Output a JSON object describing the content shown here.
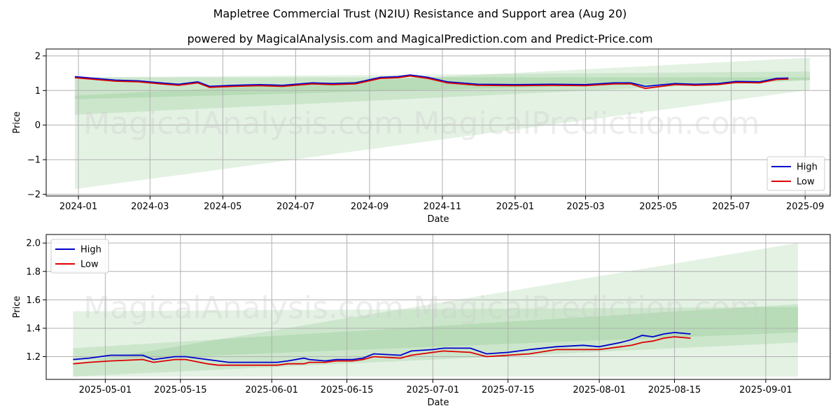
{
  "title": "Mapletree Commercial Trust (N2IU) Resistance and Support area (Aug 20)",
  "subtitle": "powered by MagicalAnalysis.com and MagicalPrediction.com and Predict-Price.com",
  "watermarks": [
    "MagicalAnalysis.com",
    "MagicalPrediction.com"
  ],
  "colors": {
    "high": "#0000cc",
    "low": "#dd0000",
    "band": "#2e9a2e",
    "grid": "#b0b0b0"
  },
  "chart_data": [
    {
      "type": "line",
      "xlabel": "Date",
      "ylabel": "Price",
      "ylim": [
        -2.05,
        2.2
      ],
      "xlim": [
        "2023-12-05",
        "2025-09-22"
      ],
      "grid": true,
      "legend_position": "bottom-right",
      "x_ticks": [
        "2024-01",
        "2024-03",
        "2024-05",
        "2024-07",
        "2024-09",
        "2024-11",
        "2025-01",
        "2025-03",
        "2025-05",
        "2025-07",
        "2025-09"
      ],
      "x_tick_dates": [
        "2024-01-01",
        "2024-03-01",
        "2024-05-01",
        "2024-07-01",
        "2024-09-01",
        "2024-11-01",
        "2025-01-01",
        "2025-03-01",
        "2025-05-01",
        "2025-07-01",
        "2025-09-01"
      ],
      "y_ticks": [
        -2,
        -1,
        0,
        1,
        2
      ],
      "y_tick_labels": [
        "−2",
        "−1",
        "0",
        "1",
        "2"
      ],
      "series": [
        {
          "name": "High",
          "x": [
            "2023-12-29",
            "2024-01-15",
            "2024-02-01",
            "2024-02-20",
            "2024-03-10",
            "2024-03-25",
            "2024-04-10",
            "2024-04-20",
            "2024-05-10",
            "2024-06-01",
            "2024-06-20",
            "2024-07-15",
            "2024-08-01",
            "2024-08-20",
            "2024-09-10",
            "2024-09-25",
            "2024-10-05",
            "2024-10-20",
            "2024-11-05",
            "2024-12-01",
            "2025-01-01",
            "2025-02-01",
            "2025-03-01",
            "2025-03-25",
            "2025-04-08",
            "2025-04-20",
            "2025-05-15",
            "2025-06-01",
            "2025-06-20",
            "2025-07-05",
            "2025-07-25",
            "2025-08-08",
            "2025-08-18"
          ],
          "values": [
            1.4,
            1.35,
            1.3,
            1.28,
            1.22,
            1.18,
            1.25,
            1.12,
            1.15,
            1.17,
            1.15,
            1.22,
            1.2,
            1.22,
            1.38,
            1.4,
            1.45,
            1.38,
            1.25,
            1.18,
            1.17,
            1.18,
            1.17,
            1.22,
            1.22,
            1.12,
            1.2,
            1.18,
            1.2,
            1.26,
            1.25,
            1.35,
            1.36
          ]
        },
        {
          "name": "Low",
          "x": [
            "2023-12-29",
            "2024-01-15",
            "2024-02-01",
            "2024-02-20",
            "2024-03-10",
            "2024-03-25",
            "2024-04-10",
            "2024-04-20",
            "2024-05-10",
            "2024-06-01",
            "2024-06-20",
            "2024-07-15",
            "2024-08-01",
            "2024-08-20",
            "2024-09-10",
            "2024-09-25",
            "2024-10-05",
            "2024-10-20",
            "2024-11-05",
            "2024-12-01",
            "2025-01-01",
            "2025-02-01",
            "2025-03-01",
            "2025-03-25",
            "2025-04-08",
            "2025-04-20",
            "2025-05-15",
            "2025-06-01",
            "2025-06-20",
            "2025-07-05",
            "2025-07-25",
            "2025-08-08",
            "2025-08-18"
          ],
          "values": [
            1.37,
            1.32,
            1.27,
            1.25,
            1.19,
            1.15,
            1.22,
            1.09,
            1.12,
            1.14,
            1.12,
            1.19,
            1.17,
            1.19,
            1.35,
            1.37,
            1.42,
            1.35,
            1.22,
            1.15,
            1.14,
            1.15,
            1.14,
            1.19,
            1.19,
            1.06,
            1.17,
            1.15,
            1.17,
            1.23,
            1.22,
            1.32,
            1.33
          ]
        }
      ],
      "bands": [
        {
          "x": [
            "2023-12-29",
            "2025-09-05"
          ],
          "upper": [
            1.38,
            1.38
          ],
          "lower": [
            -1.85,
            1.02
          ]
        },
        {
          "x": [
            "2023-12-29",
            "2025-09-05"
          ],
          "upper": [
            0.85,
            1.95
          ],
          "lower": [
            0.3,
            1.3
          ]
        },
        {
          "x": [
            "2023-12-29",
            "2025-09-05"
          ],
          "upper": [
            1.38,
            1.55
          ],
          "lower": [
            0.75,
            1.3
          ]
        }
      ]
    },
    {
      "type": "line",
      "xlabel": "Date",
      "ylabel": "Price",
      "ylim": [
        1.04,
        2.06
      ],
      "xlim": [
        "2025-04-20",
        "2025-09-13"
      ],
      "grid": true,
      "legend_position": "top-left",
      "x_ticks": [
        "2025-05-01",
        "2025-05-15",
        "2025-06-01",
        "2025-06-15",
        "2025-07-01",
        "2025-07-15",
        "2025-08-01",
        "2025-08-15",
        "2025-09-01"
      ],
      "y_ticks": [
        1.2,
        1.4,
        1.6,
        1.8,
        2.0
      ],
      "y_tick_labels": [
        "1.2",
        "1.4",
        "1.6",
        "1.8",
        "2.0"
      ],
      "series": [
        {
          "name": "High",
          "x": [
            "2025-04-25",
            "2025-04-28",
            "2025-05-02",
            "2025-05-08",
            "2025-05-10",
            "2025-05-14",
            "2025-05-16",
            "2025-05-20",
            "2025-05-22",
            "2025-05-24",
            "2025-06-02",
            "2025-06-04",
            "2025-06-07",
            "2025-06-08",
            "2025-06-11",
            "2025-06-13",
            "2025-06-16",
            "2025-06-18",
            "2025-06-20",
            "2025-06-25",
            "2025-06-27",
            "2025-07-01",
            "2025-07-03",
            "2025-07-08",
            "2025-07-11",
            "2025-07-15",
            "2025-07-19",
            "2025-07-24",
            "2025-07-29",
            "2025-08-01",
            "2025-08-05",
            "2025-08-07",
            "2025-08-09",
            "2025-08-11",
            "2025-08-13",
            "2025-08-15",
            "2025-08-18"
          ],
          "values": [
            1.18,
            1.19,
            1.21,
            1.21,
            1.18,
            1.2,
            1.2,
            1.18,
            1.17,
            1.16,
            1.16,
            1.17,
            1.19,
            1.18,
            1.17,
            1.18,
            1.18,
            1.19,
            1.22,
            1.21,
            1.24,
            1.25,
            1.26,
            1.26,
            1.22,
            1.23,
            1.25,
            1.27,
            1.28,
            1.27,
            1.3,
            1.32,
            1.35,
            1.34,
            1.36,
            1.37,
            1.36
          ]
        },
        {
          "name": "Low",
          "x": [
            "2025-04-25",
            "2025-04-28",
            "2025-05-02",
            "2025-05-08",
            "2025-05-10",
            "2025-05-14",
            "2025-05-16",
            "2025-05-20",
            "2025-05-22",
            "2025-05-24",
            "2025-06-02",
            "2025-06-04",
            "2025-06-07",
            "2025-06-08",
            "2025-06-11",
            "2025-06-13",
            "2025-06-16",
            "2025-06-18",
            "2025-06-20",
            "2025-06-25",
            "2025-06-27",
            "2025-07-01",
            "2025-07-03",
            "2025-07-08",
            "2025-07-11",
            "2025-07-15",
            "2025-07-19",
            "2025-07-24",
            "2025-07-29",
            "2025-08-01",
            "2025-08-05",
            "2025-08-07",
            "2025-08-09",
            "2025-08-11",
            "2025-08-13",
            "2025-08-15",
            "2025-08-18"
          ],
          "values": [
            1.15,
            1.16,
            1.17,
            1.18,
            1.16,
            1.18,
            1.18,
            1.15,
            1.14,
            1.14,
            1.14,
            1.15,
            1.15,
            1.16,
            1.16,
            1.17,
            1.17,
            1.18,
            1.2,
            1.19,
            1.21,
            1.23,
            1.24,
            1.23,
            1.2,
            1.21,
            1.22,
            1.25,
            1.25,
            1.25,
            1.27,
            1.28,
            1.3,
            1.31,
            1.33,
            1.34,
            1.33
          ]
        }
      ],
      "bands": [
        {
          "x": [
            "2025-04-25",
            "2025-09-07"
          ],
          "upper": [
            1.52,
            1.55
          ],
          "lower": [
            1.06,
            1.06
          ]
        },
        {
          "x": [
            "2025-04-25",
            "2025-09-07"
          ],
          "upper": [
            1.15,
            2.0
          ],
          "lower": [
            1.06,
            1.3
          ]
        },
        {
          "x": [
            "2025-04-25",
            "2025-09-07"
          ],
          "upper": [
            1.26,
            1.57
          ],
          "lower": [
            1.17,
            1.37
          ]
        }
      ]
    }
  ]
}
